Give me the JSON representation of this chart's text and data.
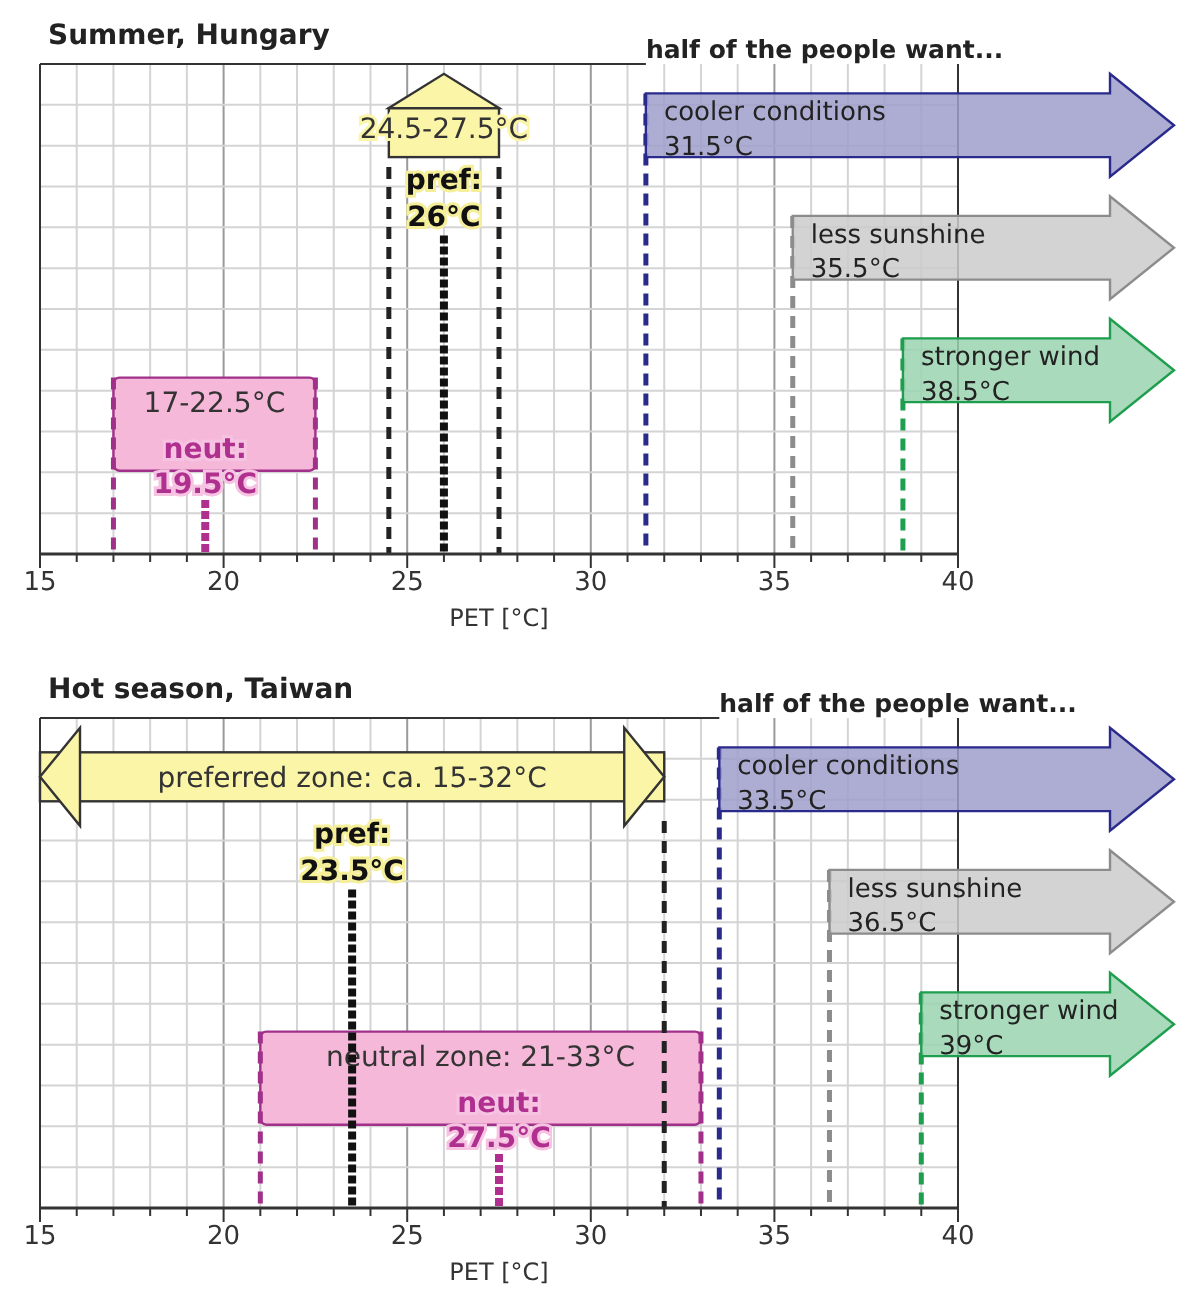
{
  "chart_data": [
    {
      "type": "bar",
      "orientation": "horizontal",
      "title": "Summer, Hungary",
      "xlabel": "PET [°C]",
      "xlim": [
        15,
        40
      ],
      "grid": true,
      "tick_labels": "x",
      "xticks": [
        15,
        {
          "value": 16,
          "label": null
        },
        {
          "value": 17,
          "label": null
        },
        {
          "value": 18,
          "label": null
        },
        {
          "value": 19,
          "label": null
        },
        20,
        {
          "value": 21,
          "label": null
        },
        {
          "value": 22,
          "label": null
        },
        {
          "value": 23,
          "label": null
        },
        {
          "value": 24,
          "label": null
        },
        25,
        {
          "value": 26,
          "label": null
        },
        {
          "value": 27,
          "label": null
        },
        {
          "value": 28,
          "label": null
        },
        {
          "value": 29,
          "label": null
        },
        30,
        {
          "value": 31,
          "label": null
        },
        {
          "value": 32,
          "label": null
        },
        {
          "value": 33,
          "label": null
        },
        {
          "value": 34,
          "label": null
        },
        35,
        {
          "value": 36,
          "label": null
        },
        {
          "value": 37,
          "label": null
        },
        {
          "value": 38,
          "label": null
        },
        {
          "value": 39,
          "label": null
        },
        40
      ],
      "categories": [
        null,
        null
      ],
      "base": [
        24.5,
        17
      ],
      "values": [
        3,
        5.5
      ],
      "colors": [
        "#fbf5a8",
        "#f6b8d8"
      ],
      "value_labels": [
        "24.5-27.5°C",
        "17-22.5°C"
      ],
      "ref_lines": [
        {
          "axis": "x",
          "value": 24.5,
          "color": "#222222",
          "line_style": "dashed"
        },
        {
          "axis": "x",
          "value": 27.5,
          "color": "#222222",
          "line_style": "dashed"
        },
        {
          "axis": "x",
          "value": 17,
          "color": "#a0308a",
          "line_style": "dashed"
        },
        {
          "axis": "x",
          "value": 22.5,
          "color": "#a0308a",
          "line_style": "dashed"
        },
        {
          "axis": "x",
          "value": 26,
          "label": "pref: 26°C",
          "color": "#111111",
          "line_style": "dotted"
        },
        {
          "axis": "x",
          "value": 19.5,
          "label": "neut: 19.5°C",
          "color": "#b0308f",
          "line_style": "dotted"
        },
        {
          "axis": "x",
          "value": 31.5,
          "label": "cooler conditions 31.5°C",
          "color": "#2a2a8c",
          "line_style": "dashed"
        },
        {
          "axis": "x",
          "value": 35.5,
          "label": "less sunshine 35.5°C",
          "color": "#8c8c8c",
          "line_style": "dashed"
        },
        {
          "axis": "x",
          "value": 38.5,
          "label": "stronger wind 38.5°C",
          "color": "#1e9e4e",
          "line_style": "dashed"
        }
      ],
      "annotations": [
        "half of the people want..."
      ]
    },
    {
      "type": "bar",
      "orientation": "horizontal",
      "title": "Hot season, Taiwan",
      "xlabel": "PET [°C]",
      "xlim": [
        15,
        40
      ],
      "grid": true,
      "tick_labels": "x",
      "xticks": [
        15,
        {
          "value": 16,
          "label": null
        },
        {
          "value": 17,
          "label": null
        },
        {
          "value": 18,
          "label": null
        },
        {
          "value": 19,
          "label": null
        },
        20,
        {
          "value": 21,
          "label": null
        },
        {
          "value": 22,
          "label": null
        },
        {
          "value": 23,
          "label": null
        },
        {
          "value": 24,
          "label": null
        },
        25,
        {
          "value": 26,
          "label": null
        },
        {
          "value": 27,
          "label": null
        },
        {
          "value": 28,
          "label": null
        },
        {
          "value": 29,
          "label": null
        },
        30,
        {
          "value": 31,
          "label": null
        },
        {
          "value": 32,
          "label": null
        },
        {
          "value": 33,
          "label": null
        },
        {
          "value": 34,
          "label": null
        },
        35,
        {
          "value": 36,
          "label": null
        },
        {
          "value": 37,
          "label": null
        },
        {
          "value": 38,
          "label": null
        },
        {
          "value": 39,
          "label": null
        },
        40
      ],
      "categories": [
        null,
        null
      ],
      "base": [
        15,
        21
      ],
      "values": [
        17,
        12
      ],
      "colors": [
        "#fbf5a8",
        "#f6b8d8"
      ],
      "value_labels": [
        "preferred zone: ca. 15-32°C",
        "neutral zone: 21-33°C"
      ],
      "ref_lines": [
        {
          "axis": "x",
          "value": 32,
          "color": "#222222",
          "line_style": "dashed"
        },
        {
          "axis": "x",
          "value": 21,
          "color": "#a0308a",
          "line_style": "dashed"
        },
        {
          "axis": "x",
          "value": 33,
          "color": "#a0308a",
          "line_style": "dashed"
        },
        {
          "axis": "x",
          "value": 23.5,
          "label": "pref: 23.5°C",
          "color": "#111111",
          "line_style": "dotted"
        },
        {
          "axis": "x",
          "value": 27.5,
          "label": "neut: 27.5°C",
          "color": "#b0308f",
          "line_style": "dotted"
        },
        {
          "axis": "x",
          "value": 33.5,
          "label": "cooler conditions 33.5°C",
          "color": "#2a2a8c",
          "line_style": "dashed"
        },
        {
          "axis": "x",
          "value": 36.5,
          "label": "less sunshine 36.5°C",
          "color": "#8c8c8c",
          "line_style": "dashed"
        },
        {
          "axis": "x",
          "value": 39,
          "label": "stronger wind 39°C",
          "color": "#1e9e4e",
          "line_style": "dashed"
        }
      ],
      "annotations": [
        "half of the people want..."
      ]
    }
  ]
}
